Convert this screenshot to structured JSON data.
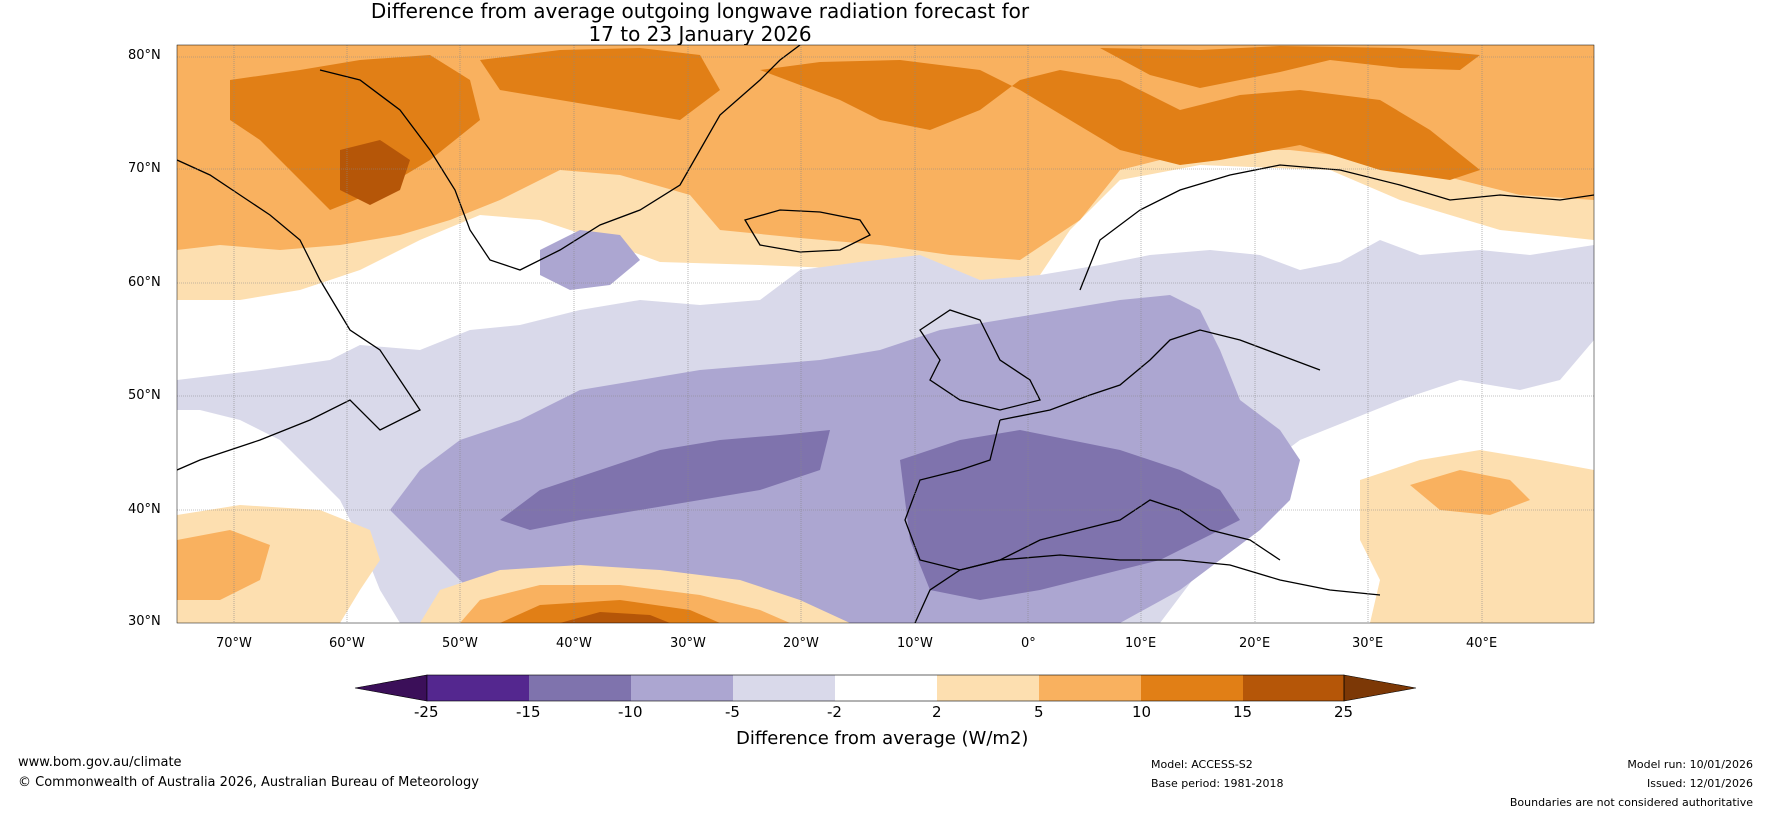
{
  "title_line1": "Difference from average outgoing longwave radiation forecast for",
  "title_line2": "17 to 23 January 2026",
  "lat_labels": [
    "80°N",
    "70°N",
    "60°N",
    "50°N",
    "40°N",
    "30°N"
  ],
  "lon_labels": [
    "70°W",
    "60°W",
    "50°W",
    "40°W",
    "30°W",
    "20°W",
    "10°W",
    "0°",
    "10°E",
    "20°E",
    "30°E",
    "40°E"
  ],
  "colorbar": {
    "ticks": [
      "-25",
      "-15",
      "-10",
      "-5",
      "-2",
      "2",
      "5",
      "10",
      "15",
      "25"
    ],
    "colors": [
      "#3b0f59",
      "#54278f",
      "#7f73ad",
      "#aca6d1",
      "#d9d9ea",
      "#ffffff",
      "#fddfb0",
      "#f9b15f",
      "#e17f16",
      "#b55608",
      "#7c3806"
    ],
    "label": "Difference from average (W/m2)"
  },
  "footer": {
    "website": "www.bom.gov.au/climate",
    "copyright": "© Commonwealth of Australia 2026, Australian Bureau of Meteorology",
    "model": "Model: ACCESS-S2",
    "base_period": "Base period: 1981-2018",
    "model_run": "Model run: 10/01/2026",
    "issued": "Issued: 12/01/2026",
    "disclaimer": "Boundaries are not considered authoritative"
  }
}
